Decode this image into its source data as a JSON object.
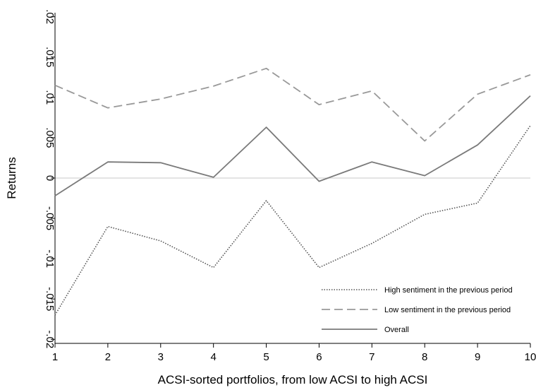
{
  "chart_data": {
    "type": "line",
    "xlabel": "ACSI-sorted portfolios, from low ACSI to high ACSI",
    "ylabel": "Returns",
    "x": [
      1,
      2,
      3,
      4,
      5,
      6,
      7,
      8,
      9,
      10
    ],
    "xticks": [
      "1",
      "2",
      "3",
      "4",
      "5",
      "6",
      "7",
      "8",
      "9",
      "10"
    ],
    "xlim": [
      1,
      10
    ],
    "yticks": [
      -0.02,
      -0.015,
      -0.01,
      -0.005,
      0,
      0.005,
      0.01,
      0.015,
      0.02
    ],
    "ytick_labels": [
      "-.02",
      "-.015",
      "-.01",
      "-.005",
      "0",
      ".005",
      ".01",
      ".015",
      ".02"
    ],
    "ylim": [
      -0.0205,
      0.0205
    ],
    "zero_line": true,
    "grid": false,
    "legend_position": "bottom-right",
    "series": [
      {
        "name": "High sentiment in the previous period",
        "style": "dotted",
        "color": "#555555",
        "values": [
          -0.017,
          -0.006,
          -0.0078,
          -0.0111,
          -0.0028,
          -0.0111,
          -0.0081,
          -0.0045,
          -0.0031,
          0.0065
        ]
      },
      {
        "name": "Low sentiment in the previous period",
        "style": "dashed",
        "color": "#999999",
        "values": [
          0.0115,
          0.0087,
          0.0098,
          0.0114,
          0.0136,
          0.0091,
          0.0108,
          0.0046,
          0.0104,
          0.0128
        ]
      },
      {
        "name": "Overall",
        "style": "solid",
        "color": "#7a7a7a",
        "values": [
          -0.0022,
          0.002,
          0.0019,
          0.0001,
          0.0063,
          -0.0004,
          0.002,
          0.0003,
          0.0041,
          0.0102
        ]
      }
    ]
  }
}
